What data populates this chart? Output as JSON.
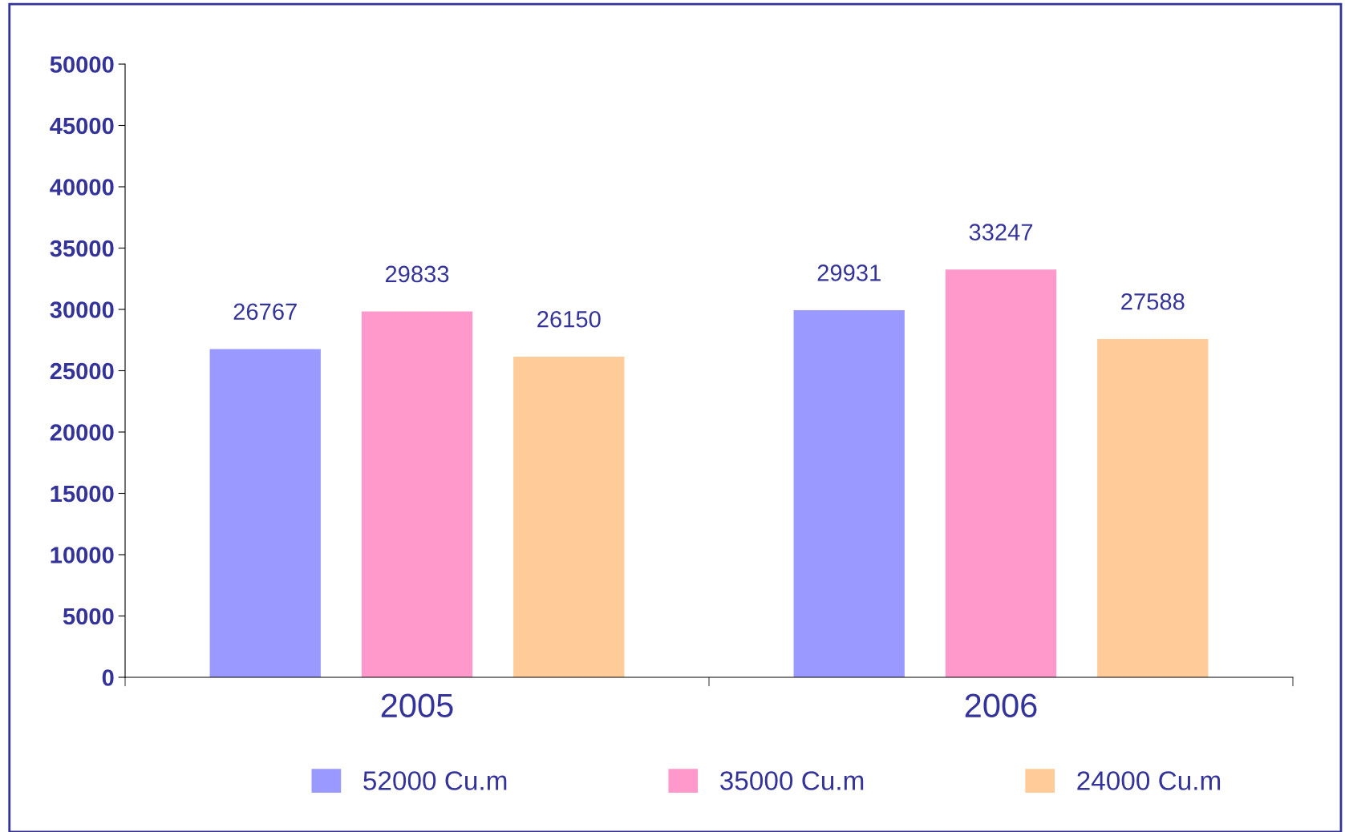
{
  "chart_data": {
    "type": "bar",
    "categories": [
      "2005",
      "2006"
    ],
    "series": [
      {
        "name": "52000 Cu.m",
        "color": "#9999ff",
        "values": [
          26767,
          29931
        ]
      },
      {
        "name": "35000 Cu.m",
        "color": "#ff99cc",
        "values": [
          29833,
          33247
        ]
      },
      {
        "name": "24000 Cu.m",
        "color": "#ffcc99",
        "values": [
          26150,
          27588
        ]
      }
    ],
    "ylim": [
      0,
      50000
    ],
    "yticks": [
      0,
      5000,
      10000,
      15000,
      20000,
      25000,
      30000,
      35000,
      40000,
      45000,
      50000
    ],
    "data_labels": true,
    "legend": "bottom",
    "grid": false
  }
}
